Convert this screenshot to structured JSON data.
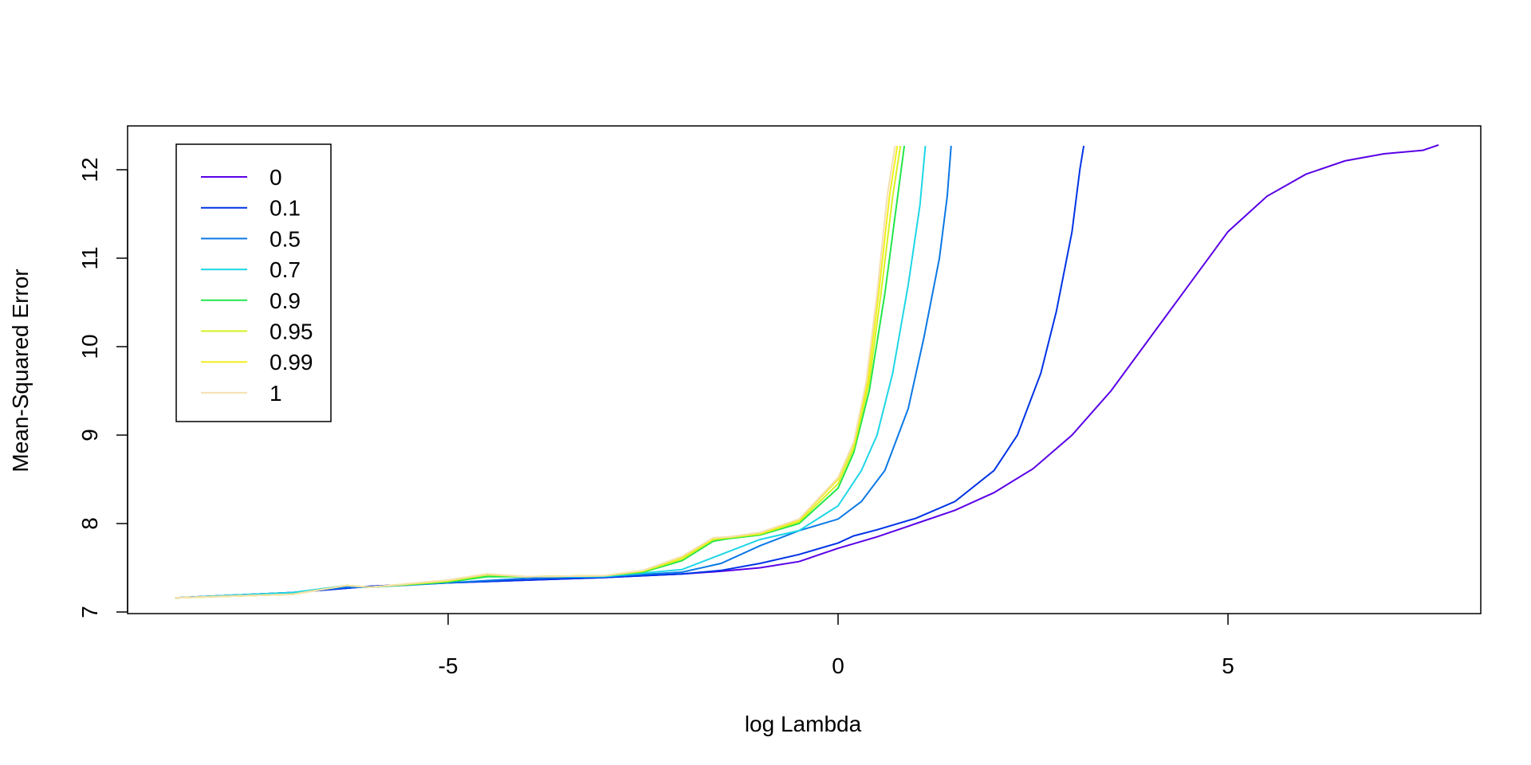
{
  "chart_data": {
    "type": "line",
    "title": "",
    "xlabel": "log Lambda",
    "ylabel": "Mean-Squared Error",
    "xlim": [
      -9,
      8.5
    ],
    "ylim": [
      7,
      12.5
    ],
    "xticks": [
      -5,
      0,
      5
    ],
    "xtick_labels": [
      "-5",
      "0",
      "5"
    ],
    "yticks": [
      7,
      8,
      9,
      10,
      11,
      12
    ],
    "ytick_labels": [
      "7",
      "8",
      "9",
      "10",
      "11",
      "12"
    ],
    "grid": false,
    "legend_position": "top-left",
    "series": [
      {
        "name": "0",
        "color": "#5a00e6",
        "points": [
          [
            -8.5,
            7.16
          ],
          [
            -7,
            7.22
          ],
          [
            -6,
            7.29
          ],
          [
            -5,
            7.33
          ],
          [
            -4,
            7.36
          ],
          [
            -3,
            7.39
          ],
          [
            -2,
            7.43
          ],
          [
            -1.5,
            7.46
          ],
          [
            -1,
            7.5
          ],
          [
            -0.5,
            7.57
          ],
          [
            0,
            7.72
          ],
          [
            0.5,
            7.85
          ],
          [
            1,
            8
          ],
          [
            1.5,
            8.15
          ],
          [
            2,
            8.35
          ],
          [
            2.5,
            8.62
          ],
          [
            3,
            9.0
          ],
          [
            3.5,
            9.5
          ],
          [
            4,
            10.1
          ],
          [
            4.5,
            10.7
          ],
          [
            5,
            11.3
          ],
          [
            5.5,
            11.7
          ],
          [
            6,
            11.95
          ],
          [
            6.5,
            12.1
          ],
          [
            7,
            12.18
          ],
          [
            7.5,
            12.22
          ],
          [
            7.7,
            12.28
          ]
        ]
      },
      {
        "name": "0.1",
        "color": "#0033e6",
        "points": [
          [
            -8.5,
            7.16
          ],
          [
            -7,
            7.22
          ],
          [
            -6,
            7.29
          ],
          [
            -5,
            7.33
          ],
          [
            -4,
            7.36
          ],
          [
            -3,
            7.39
          ],
          [
            -2,
            7.43
          ],
          [
            -1.5,
            7.47
          ],
          [
            -1,
            7.55
          ],
          [
            -0.5,
            7.65
          ],
          [
            0,
            7.78
          ],
          [
            0.2,
            7.86
          ],
          [
            0.5,
            7.93
          ],
          [
            1,
            8.06
          ],
          [
            1.5,
            8.25
          ],
          [
            2,
            8.6
          ],
          [
            2.3,
            9.0
          ],
          [
            2.6,
            9.7
          ],
          [
            2.8,
            10.4
          ],
          [
            3.0,
            11.3
          ],
          [
            3.1,
            12.0
          ],
          [
            3.15,
            12.27
          ]
        ]
      },
      {
        "name": "0.5",
        "color": "#0a78e6",
        "points": [
          [
            -8.5,
            7.16
          ],
          [
            -7,
            7.22
          ],
          [
            -6.3,
            7.28
          ],
          [
            -6,
            7.28
          ],
          [
            -5,
            7.33
          ],
          [
            -4,
            7.38
          ],
          [
            -3,
            7.4
          ],
          [
            -2,
            7.45
          ],
          [
            -1.5,
            7.55
          ],
          [
            -1,
            7.75
          ],
          [
            -0.5,
            7.92
          ],
          [
            0,
            8.05
          ],
          [
            0.3,
            8.25
          ],
          [
            0.6,
            8.6
          ],
          [
            0.9,
            9.3
          ],
          [
            1.1,
            10.1
          ],
          [
            1.3,
            11.0
          ],
          [
            1.4,
            11.7
          ],
          [
            1.45,
            12.27
          ]
        ]
      },
      {
        "name": "0.7",
        "color": "#1ed6e6",
        "points": [
          [
            -8.5,
            7.16
          ],
          [
            -7,
            7.22
          ],
          [
            -6.3,
            7.3
          ],
          [
            -6,
            7.28
          ],
          [
            -5,
            7.34
          ],
          [
            -4.5,
            7.4
          ],
          [
            -4,
            7.4
          ],
          [
            -3,
            7.4
          ],
          [
            -2,
            7.48
          ],
          [
            -1.5,
            7.65
          ],
          [
            -1,
            7.82
          ],
          [
            -0.5,
            7.92
          ],
          [
            0,
            8.2
          ],
          [
            0.3,
            8.6
          ],
          [
            0.5,
            9.0
          ],
          [
            0.7,
            9.7
          ],
          [
            0.9,
            10.7
          ],
          [
            1.05,
            11.6
          ],
          [
            1.12,
            12.27
          ]
        ]
      },
      {
        "name": "0.9",
        "color": "#22e64a",
        "points": [
          [
            -8.5,
            7.16
          ],
          [
            -7,
            7.2
          ],
          [
            -6.3,
            7.3
          ],
          [
            -6,
            7.28
          ],
          [
            -5,
            7.34
          ],
          [
            -4.5,
            7.4
          ],
          [
            -4,
            7.4
          ],
          [
            -3,
            7.41
          ],
          [
            -2.5,
            7.45
          ],
          [
            -2,
            7.58
          ],
          [
            -1.6,
            7.8
          ],
          [
            -1.4,
            7.83
          ],
          [
            -1,
            7.87
          ],
          [
            -0.5,
            8.0
          ],
          [
            0,
            8.4
          ],
          [
            0.2,
            8.8
          ],
          [
            0.4,
            9.5
          ],
          [
            0.6,
            10.6
          ],
          [
            0.75,
            11.6
          ],
          [
            0.85,
            12.27
          ]
        ]
      },
      {
        "name": "0.95",
        "color": "#d6f21e",
        "points": [
          [
            -8.5,
            7.16
          ],
          [
            -7,
            7.2
          ],
          [
            -6.3,
            7.3
          ],
          [
            -6,
            7.28
          ],
          [
            -5,
            7.35
          ],
          [
            -4.5,
            7.42
          ],
          [
            -4,
            7.4
          ],
          [
            -3,
            7.41
          ],
          [
            -2.5,
            7.46
          ],
          [
            -2,
            7.6
          ],
          [
            -1.6,
            7.82
          ],
          [
            -1.4,
            7.84
          ],
          [
            -1,
            7.88
          ],
          [
            -0.5,
            8.02
          ],
          [
            0,
            8.45
          ],
          [
            0.2,
            8.85
          ],
          [
            0.4,
            9.6
          ],
          [
            0.55,
            10.6
          ],
          [
            0.7,
            11.7
          ],
          [
            0.8,
            12.27
          ]
        ]
      },
      {
        "name": "0.99",
        "color": "#f2ee1e",
        "points": [
          [
            -8.5,
            7.16
          ],
          [
            -7,
            7.2
          ],
          [
            -6.3,
            7.3
          ],
          [
            -6,
            7.28
          ],
          [
            -5,
            7.36
          ],
          [
            -4.5,
            7.43
          ],
          [
            -4,
            7.4
          ],
          [
            -3,
            7.41
          ],
          [
            -2.5,
            7.47
          ],
          [
            -2,
            7.62
          ],
          [
            -1.6,
            7.83
          ],
          [
            -1.4,
            7.85
          ],
          [
            -1,
            7.89
          ],
          [
            -0.5,
            8.04
          ],
          [
            0,
            8.5
          ],
          [
            0.2,
            8.9
          ],
          [
            0.38,
            9.6
          ],
          [
            0.52,
            10.6
          ],
          [
            0.66,
            11.7
          ],
          [
            0.76,
            12.27
          ]
        ]
      },
      {
        "name": "1",
        "color": "#f5e0b0",
        "points": [
          [
            -8.5,
            7.16
          ],
          [
            -7,
            7.2
          ],
          [
            -6.3,
            7.3
          ],
          [
            -6,
            7.28
          ],
          [
            -5,
            7.36
          ],
          [
            -4.5,
            7.43
          ],
          [
            -4,
            7.4
          ],
          [
            -3,
            7.41
          ],
          [
            -2.5,
            7.47
          ],
          [
            -2,
            7.63
          ],
          [
            -1.6,
            7.84
          ],
          [
            -1.4,
            7.85
          ],
          [
            -1,
            7.9
          ],
          [
            -0.5,
            8.05
          ],
          [
            0,
            8.52
          ],
          [
            0.2,
            8.92
          ],
          [
            0.36,
            9.6
          ],
          [
            0.5,
            10.6
          ],
          [
            0.63,
            11.7
          ],
          [
            0.73,
            12.27
          ]
        ]
      }
    ]
  }
}
